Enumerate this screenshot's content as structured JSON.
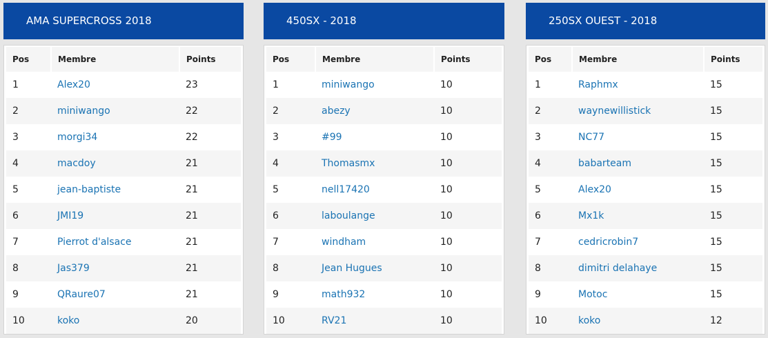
{
  "column_headers": {
    "pos": "Pos",
    "member": "Membre",
    "points": "Points"
  },
  "colors": {
    "header_bg": "#0a49a2",
    "link": "#1a73b3"
  },
  "tables": [
    {
      "title": "AMA SUPERCROSS 2018",
      "rows": [
        {
          "pos": "1",
          "member": "Alex20",
          "points": "23"
        },
        {
          "pos": "2",
          "member": "miniwango",
          "points": "22"
        },
        {
          "pos": "3",
          "member": "morgi34",
          "points": "22"
        },
        {
          "pos": "4",
          "member": "macdoy",
          "points": "21"
        },
        {
          "pos": "5",
          "member": "jean-baptiste",
          "points": "21"
        },
        {
          "pos": "6",
          "member": "JMI19",
          "points": "21"
        },
        {
          "pos": "7",
          "member": "Pierrot d'alsace",
          "points": "21"
        },
        {
          "pos": "8",
          "member": "Jas379",
          "points": "21"
        },
        {
          "pos": "9",
          "member": "QRaure07",
          "points": "21"
        },
        {
          "pos": "10",
          "member": "koko",
          "points": "20"
        }
      ]
    },
    {
      "title": "450SX - 2018",
      "rows": [
        {
          "pos": "1",
          "member": "miniwango",
          "points": "10"
        },
        {
          "pos": "2",
          "member": "abezy",
          "points": "10"
        },
        {
          "pos": "3",
          "member": "#99",
          "points": "10"
        },
        {
          "pos": "4",
          "member": "Thomasmx",
          "points": "10"
        },
        {
          "pos": "5",
          "member": "nell17420",
          "points": "10"
        },
        {
          "pos": "6",
          "member": "laboulange",
          "points": "10"
        },
        {
          "pos": "7",
          "member": "windham",
          "points": "10"
        },
        {
          "pos": "8",
          "member": "Jean Hugues",
          "points": "10"
        },
        {
          "pos": "9",
          "member": "math932",
          "points": "10"
        },
        {
          "pos": "10",
          "member": "RV21",
          "points": "10"
        }
      ]
    },
    {
      "title": "250SX OUEST - 2018",
      "rows": [
        {
          "pos": "1",
          "member": "Raphmx",
          "points": "15"
        },
        {
          "pos": "2",
          "member": "waynewillistick",
          "points": "15"
        },
        {
          "pos": "3",
          "member": "NC77",
          "points": "15"
        },
        {
          "pos": "4",
          "member": "babarteam",
          "points": "15"
        },
        {
          "pos": "5",
          "member": "Alex20",
          "points": "15"
        },
        {
          "pos": "6",
          "member": "Mx1k",
          "points": "15"
        },
        {
          "pos": "7",
          "member": "cedricrobin7",
          "points": "15"
        },
        {
          "pos": "8",
          "member": "dimitri delahaye",
          "points": "15"
        },
        {
          "pos": "9",
          "member": "Motoc",
          "points": "15"
        },
        {
          "pos": "10",
          "member": "koko",
          "points": "12"
        }
      ]
    }
  ]
}
